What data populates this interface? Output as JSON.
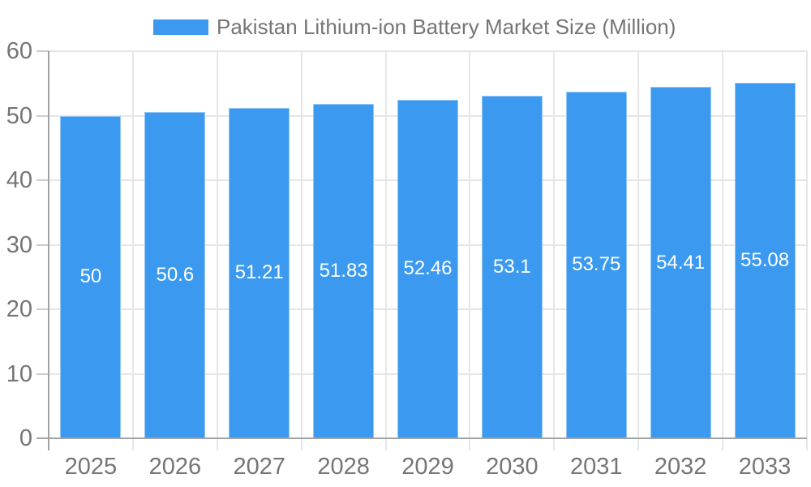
{
  "chart_data": {
    "type": "bar",
    "title": "Pakistan Lithium-ion Battery Market Size (Million)",
    "legend_position": "top",
    "categories": [
      "2025",
      "2026",
      "2027",
      "2028",
      "2029",
      "2030",
      "2031",
      "2032",
      "2033"
    ],
    "series": [
      {
        "name": "Pakistan Lithium-ion Battery Market Size (Million)",
        "values": [
          50,
          50.6,
          51.21,
          51.83,
          52.46,
          53.1,
          53.75,
          54.41,
          55.08
        ],
        "value_labels": [
          "50",
          "50.6",
          "51.21",
          "51.83",
          "52.46",
          "53.1",
          "53.75",
          "54.41",
          "55.08"
        ]
      }
    ],
    "xlabel": "",
    "ylabel": "",
    "ylim": [
      0,
      60
    ],
    "yticks": [
      0,
      10,
      20,
      30,
      40,
      50,
      60
    ],
    "grid": true,
    "colors": {
      "bar": "#3B9AEF",
      "title_text": "#757575",
      "axis_text": "#757575",
      "value_text": "#FFFFFF",
      "grid_line": "#E6E6E6",
      "tick_line": "#CCCCCC",
      "axis_line": "#A3A3A3",
      "background": "#FFFFFF"
    }
  }
}
